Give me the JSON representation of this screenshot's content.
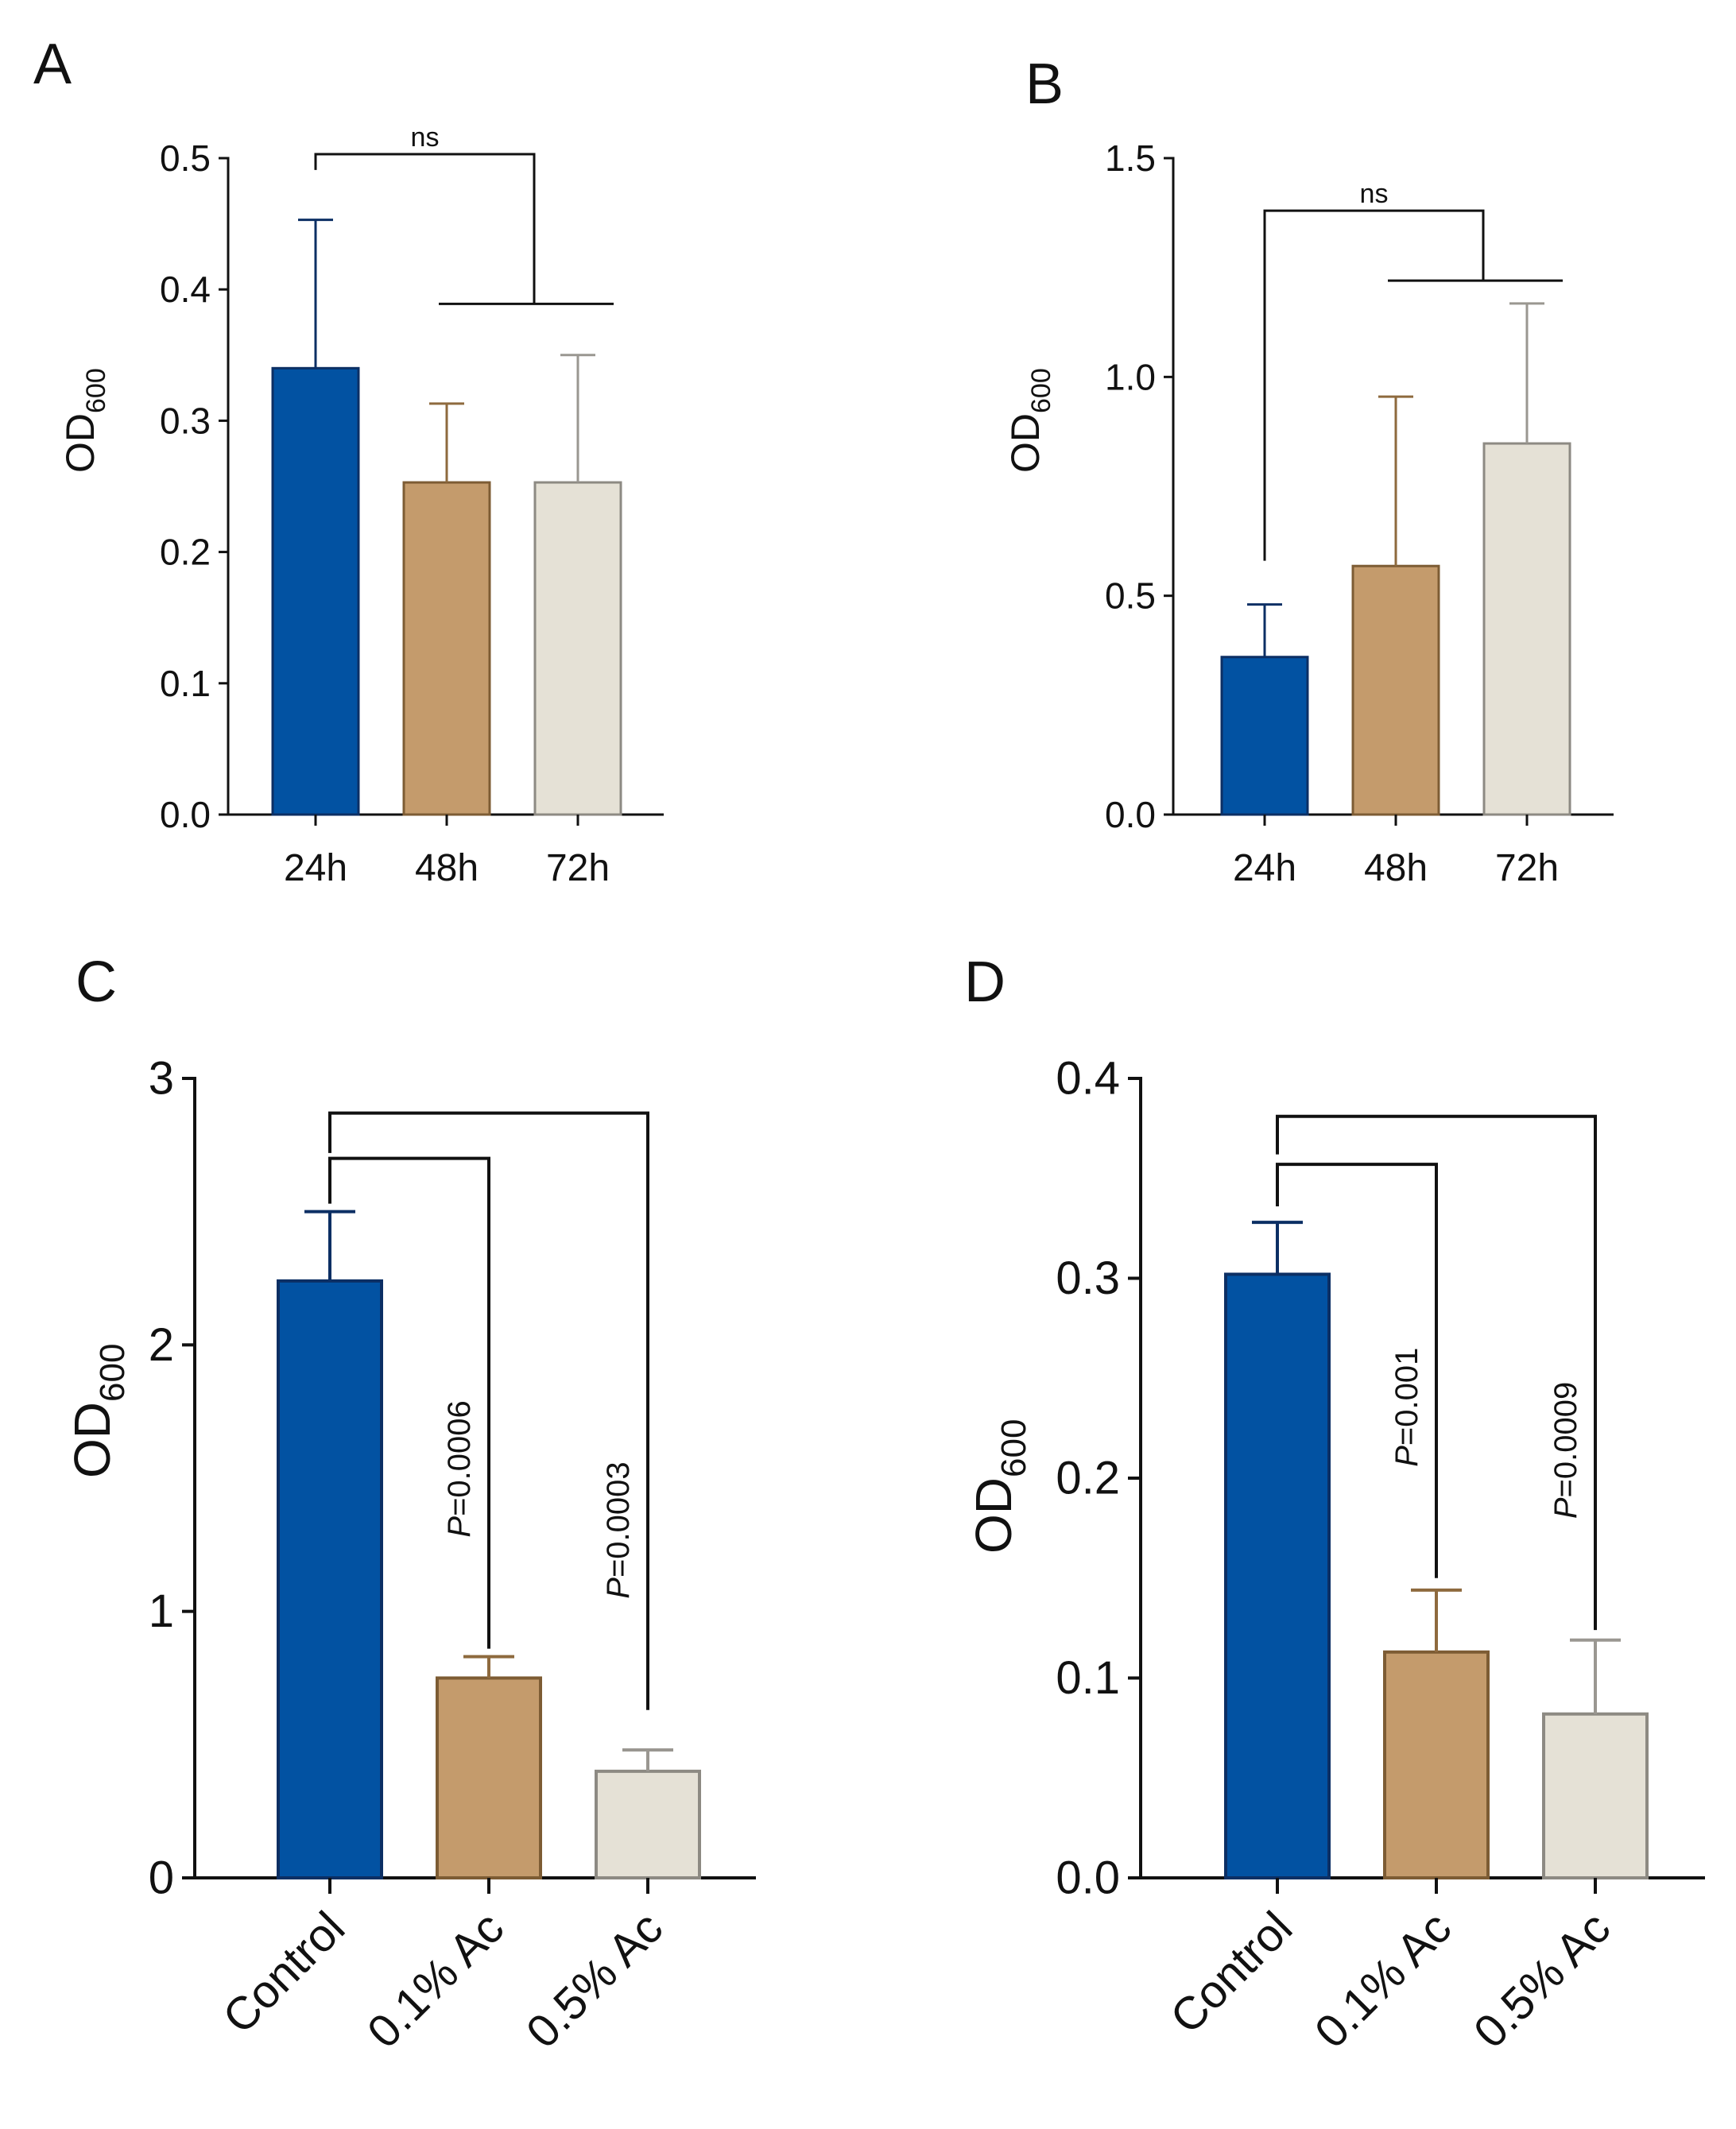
{
  "colors": {
    "bar_1": "#0252a2",
    "bar_2": "#c49b6c",
    "bar_3": "#e5e1d6",
    "bar_1_edge": "#0c2f64",
    "bar_2_edge": "#7d5c34",
    "bar_3_edge": "#8d8a83",
    "err_1": "#0c2f64",
    "err_2": "#8e6a3e",
    "err_3": "#9a9791",
    "axis": "#111111"
  },
  "chart_data": [
    {
      "panel": "A",
      "type": "bar",
      "ylabel": "OD",
      "ylabel_sub": "600",
      "categories": [
        "24h",
        "48h",
        "72h"
      ],
      "values": [
        0.34,
        0.253,
        0.253
      ],
      "errors": [
        0.113,
        0.06,
        0.097
      ],
      "ylim": [
        0,
        0.5
      ],
      "yticks": [
        "0.0",
        "0.1",
        "0.2",
        "0.3",
        "0.4",
        "0.5"
      ],
      "ytick_values": [
        0,
        0.1,
        0.2,
        0.3,
        0.4,
        0.5
      ],
      "brackets": [
        {
          "kind": "group",
          "from": 0,
          "to_group": [
            1,
            2
          ],
          "label": "ns",
          "top": 0.503,
          "group_line": 0.389,
          "left_end": 0.491
        }
      ]
    },
    {
      "panel": "B",
      "type": "bar",
      "ylabel": "OD",
      "ylabel_sub": "600",
      "categories": [
        "24h",
        "48h",
        "72h"
      ],
      "values": [
        0.36,
        0.568,
        0.848
      ],
      "errors": [
        0.12,
        0.387,
        0.32
      ],
      "ylim": [
        0,
        1.5
      ],
      "yticks": [
        "0.0",
        "0.5",
        "1.0",
        "1.5"
      ],
      "ytick_values": [
        0,
        0.5,
        1.0,
        1.5
      ],
      "brackets": [
        {
          "kind": "group",
          "from": 0,
          "to_group": [
            1,
            2
          ],
          "label": "ns",
          "top": 1.38,
          "group_line": 1.22,
          "left_end": 0.58
        }
      ]
    },
    {
      "panel": "C",
      "type": "bar",
      "ylabel": "OD",
      "ylabel_sub": "600",
      "categories": [
        "Control",
        "0.1% Ac",
        "0.5% Ac"
      ],
      "values": [
        2.24,
        0.75,
        0.4
      ],
      "errors": [
        0.26,
        0.08,
        0.08
      ],
      "ylim": [
        0,
        3
      ],
      "yticks": [
        "0",
        "1",
        "2",
        "3"
      ],
      "ytick_values": [
        0,
        1,
        2,
        3
      ],
      "brackets": [
        {
          "kind": "pair",
          "from": 0,
          "to": 1,
          "p_italic": "P",
          "p_rest": "=0.0006",
          "top": 2.7,
          "left_end": 2.53,
          "right_end": 0.86
        },
        {
          "kind": "pair",
          "from": 0,
          "to": 2,
          "p_italic": "P",
          "p_rest": "=0.0003",
          "top": 2.87,
          "left_end": 2.72,
          "right_end": 0.63
        }
      ]
    },
    {
      "panel": "D",
      "type": "bar",
      "ylabel": "OD",
      "ylabel_sub": "600",
      "categories": [
        "Control",
        "0.1% Ac",
        "0.5% Ac"
      ],
      "values": [
        0.302,
        0.113,
        0.082
      ],
      "errors": [
        0.026,
        0.031,
        0.037
      ],
      "ylim": [
        0,
        0.4
      ],
      "yticks": [
        "0.0",
        "0.1",
        "0.2",
        "0.3",
        "0.4"
      ],
      "ytick_values": [
        0,
        0.1,
        0.2,
        0.3,
        0.4
      ],
      "brackets": [
        {
          "kind": "pair",
          "from": 0,
          "to": 1,
          "p_italic": "P",
          "p_rest": "=0.001",
          "top": 0.357,
          "left_end": 0.336,
          "right_end": 0.15
        },
        {
          "kind": "pair",
          "from": 0,
          "to": 2,
          "p_italic": "P",
          "p_rest": "=0.0009",
          "top": 0.381,
          "left_end": 0.362,
          "right_end": 0.124
        }
      ]
    }
  ]
}
